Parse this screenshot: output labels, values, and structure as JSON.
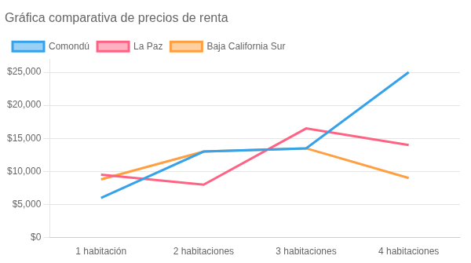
{
  "chart_data": {
    "type": "line",
    "title": "Gráfica comparativa de precios de renta",
    "categories": [
      "1 habitación",
      "2 habitaciones",
      "3 habitaciones",
      "4 habitaciones"
    ],
    "series": [
      {
        "name": "Comondú",
        "values": [
          6000,
          13000,
          13500,
          25000
        ]
      },
      {
        "name": "La Paz",
        "values": [
          9500,
          8000,
          16500,
          14000
        ]
      },
      {
        "name": "Baja California Sur",
        "values": [
          8800,
          13000,
          13500,
          9000
        ]
      }
    ],
    "ylim": [
      0,
      27000
    ],
    "yticks": [
      {
        "value": 0,
        "label": "$0"
      },
      {
        "value": 5000,
        "label": "$5,000"
      },
      {
        "value": 10000,
        "label": "$10,000"
      },
      {
        "value": 15000,
        "label": "$15,000"
      },
      {
        "value": 20000,
        "label": "$20,000"
      },
      {
        "value": 25000,
        "label": "$25,000"
      }
    ],
    "grid": true,
    "legend": "top"
  }
}
